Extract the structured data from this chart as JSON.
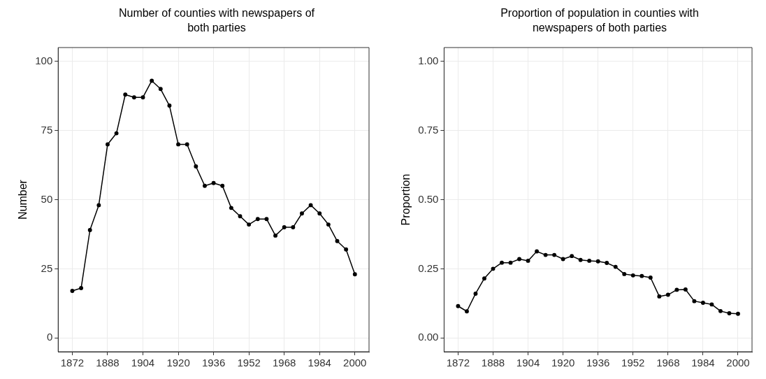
{
  "chart_data": [
    {
      "type": "line",
      "title": "Number of counties with newspapers of both parties",
      "ylabel": "Number",
      "x": [
        1872,
        1876,
        1880,
        1884,
        1888,
        1892,
        1896,
        1900,
        1904,
        1908,
        1912,
        1916,
        1920,
        1924,
        1928,
        1932,
        1936,
        1940,
        1944,
        1948,
        1952,
        1956,
        1960,
        1964,
        1968,
        1972,
        1976,
        1980,
        1984,
        1988,
        1992,
        1996,
        2000
      ],
      "series": [
        {
          "color": "#000000",
          "values": [
            17,
            18,
            39,
            48,
            70,
            74,
            88,
            87,
            87,
            93,
            90,
            84,
            70,
            70,
            62,
            55,
            56,
            55,
            47,
            44,
            41,
            43,
            43,
            37,
            40,
            40,
            45,
            48,
            45,
            41,
            35,
            32,
            23
          ]
        }
      ],
      "xlim": [
        1865.6,
        2006.4
      ],
      "xticks": [
        1872,
        1888,
        1904,
        1920,
        1936,
        1952,
        1968,
        1984,
        2000
      ],
      "ylim": [
        -5,
        105
      ],
      "yticks": [
        0,
        25,
        50,
        75,
        100
      ],
      "grid": true,
      "marker": "circle",
      "line_style": "solid"
    },
    {
      "type": "line",
      "title": "Proportion of population in counties with newspapers of both parties",
      "ylabel": "Proportion",
      "x": [
        1872,
        1876,
        1880,
        1884,
        1888,
        1892,
        1896,
        1900,
        1904,
        1908,
        1912,
        1916,
        1920,
        1924,
        1928,
        1932,
        1936,
        1940,
        1944,
        1948,
        1952,
        1956,
        1960,
        1964,
        1968,
        1972,
        1976,
        1980,
        1984,
        1988,
        1992,
        1996,
        2000
      ],
      "series": [
        {
          "color": "#000000",
          "values": [
            0.115,
            0.096,
            0.16,
            0.215,
            0.25,
            0.272,
            0.272,
            0.285,
            0.279,
            0.313,
            0.3,
            0.3,
            0.285,
            0.296,
            0.282,
            0.279,
            0.277,
            0.271,
            0.257,
            0.231,
            0.226,
            0.224,
            0.218,
            0.15,
            0.156,
            0.174,
            0.175,
            0.133,
            0.127,
            0.121,
            0.097,
            0.089,
            0.087
          ]
        }
      ],
      "xlim": [
        1865.6,
        2006.4
      ],
      "xticks": [
        1872,
        1888,
        1904,
        1920,
        1936,
        1952,
        1968,
        1984,
        2000
      ],
      "ylim": [
        -0.05,
        1.05
      ],
      "yticks": [
        {
          "value": 0,
          "label": "0.00"
        },
        {
          "value": 0.25,
          "label": "0.25"
        },
        {
          "value": 0.5,
          "label": "0.50"
        },
        {
          "value": 0.75,
          "label": "0.75"
        },
        {
          "value": 1,
          "label": "1.00"
        }
      ],
      "grid": true,
      "marker": "circle",
      "line_style": "solid"
    }
  ]
}
